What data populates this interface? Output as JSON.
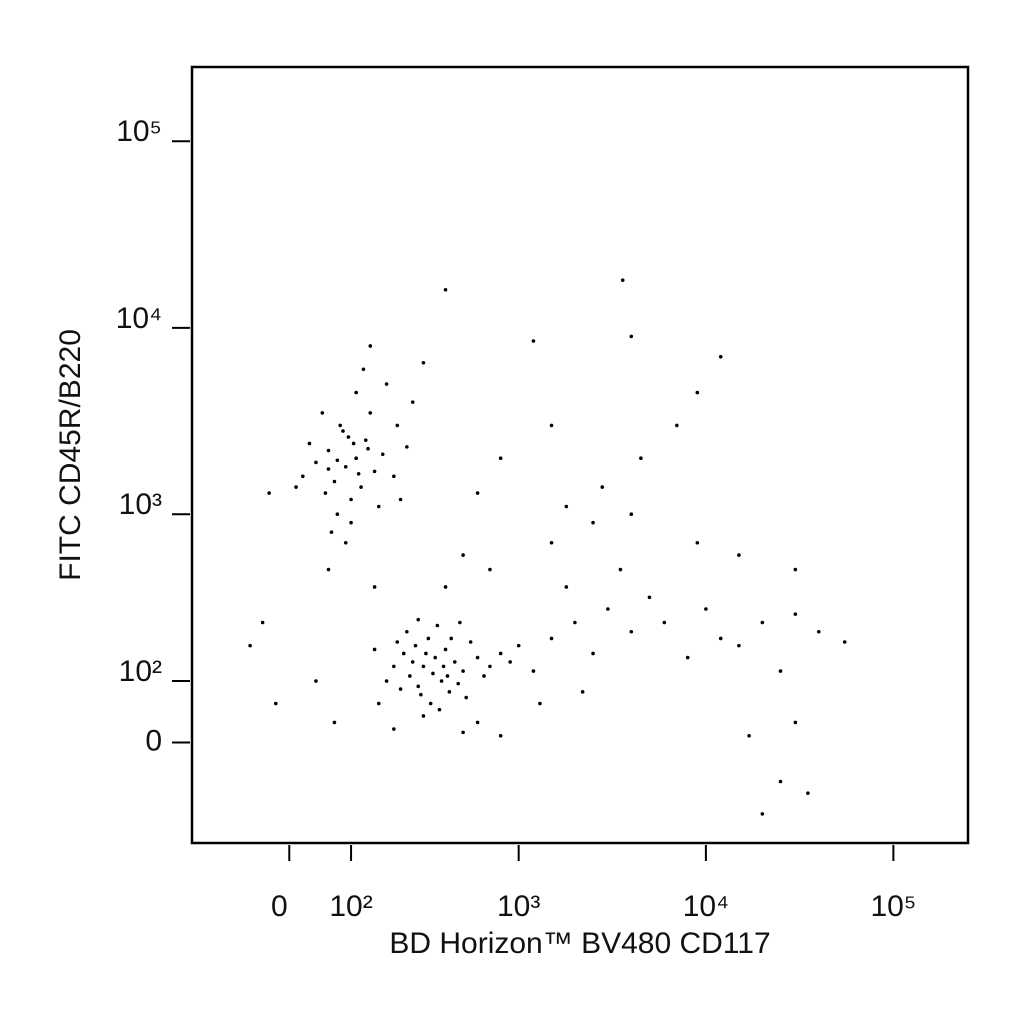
{
  "chart_data": {
    "type": "scatter",
    "color": "#000000",
    "xlabel": "BD Horizon™ BV480 CD117",
    "ylabel": "FITC CD45R/B220",
    "xscale": "biexponential",
    "yscale": "biexponential",
    "xlim": [
      -180,
      250000
    ],
    "ylim": [
      -190,
      250000
    ],
    "xticks": [
      0,
      {
        "value": 100,
        "label": "10²"
      },
      {
        "value": 1000,
        "label": "10³"
      },
      {
        "value": 10000,
        "label": "10⁴"
      },
      {
        "value": 100000,
        "label": "10⁵"
      }
    ],
    "yticks": [
      0,
      {
        "value": 100,
        "label": "10²"
      },
      {
        "value": 1000,
        "label": "10³"
      },
      {
        "value": 10000,
        "label": "10⁴"
      },
      {
        "value": 100000,
        "label": "10⁵"
      }
    ],
    "x": [
      90,
      110,
      70,
      130,
      100,
      60,
      150,
      80,
      120,
      40,
      95,
      170,
      55,
      140,
      75,
      200,
      110,
      30,
      160,
      85,
      125,
      210,
      65,
      100,
      180,
      50,
      240,
      20,
      140,
      260,
      90,
      300,
      10,
      -30,
      220,
      115,
      75,
      135,
      60,
      105,
      300,
      350,
      250,
      400,
      280,
      450,
      320,
      230,
      380,
      500,
      270,
      420,
      200,
      600,
      330,
      360,
      180,
      550,
      290,
      700,
      240,
      410,
      310,
      470,
      260,
      390,
      340,
      220,
      650,
      800,
      150,
      520,
      280,
      430,
      370,
      160,
      900,
      300,
      480,
      210,
      1000,
      1500,
      2000,
      1200,
      2500,
      3000,
      1800,
      4000,
      5000,
      700,
      1500,
      2500,
      3500,
      6000,
      8000,
      10000,
      12000,
      15000,
      20000,
      25000,
      30000,
      40000,
      55000,
      30000,
      25000,
      20000,
      35000,
      17000,
      4000,
      1800,
      600,
      800,
      400,
      4000,
      3600,
      1200,
      12000,
      9000,
      7000,
      4500,
      2800,
      1500,
      500,
      400,
      150,
      60,
      -40,
      -60,
      70,
      200,
      500,
      800,
      -20,
      40,
      1300,
      2200,
      600,
      15000,
      9000,
      30000
    ],
    "y": [
      1800,
      2000,
      1500,
      2500,
      1200,
      2200,
      1700,
      3000,
      1400,
      1900,
      2600,
      2100,
      1300,
      3500,
      1000,
      1600,
      4500,
      2400,
      1100,
      2800,
      6000,
      3000,
      800,
      900,
      5000,
      3500,
      2300,
      1600,
      8000,
      4000,
      700,
      6500,
      1400,
      1300,
      1200,
      1650,
      1950,
      2250,
      1750,
      2400,
      130,
      150,
      110,
      170,
      90,
      140,
      200,
      160,
      100,
      120,
      180,
      80,
      130,
      150,
      60,
      240,
      100,
      190,
      75,
      130,
      220,
      110,
      160,
      95,
      140,
      130,
      115,
      85,
      110,
      160,
      170,
      70,
      260,
      200,
      50,
      60,
      140,
      40,
      250,
      190,
      180,
      200,
      250,
      120,
      160,
      300,
      400,
      220,
      350,
      500,
      700,
      900,
      500,
      250,
      150,
      300,
      200,
      180,
      250,
      120,
      280,
      220,
      190,
      30,
      -60,
      -120,
      -80,
      10,
      1000,
      1100,
      1300,
      2000,
      16000,
      9000,
      18000,
      8500,
      7000,
      4500,
      3000,
      2000,
      1400,
      3000,
      600,
      400,
      400,
      500,
      250,
      180,
      30,
      20,
      15,
      10,
      60,
      100,
      60,
      80,
      30,
      600,
      700,
      500
    ]
  }
}
